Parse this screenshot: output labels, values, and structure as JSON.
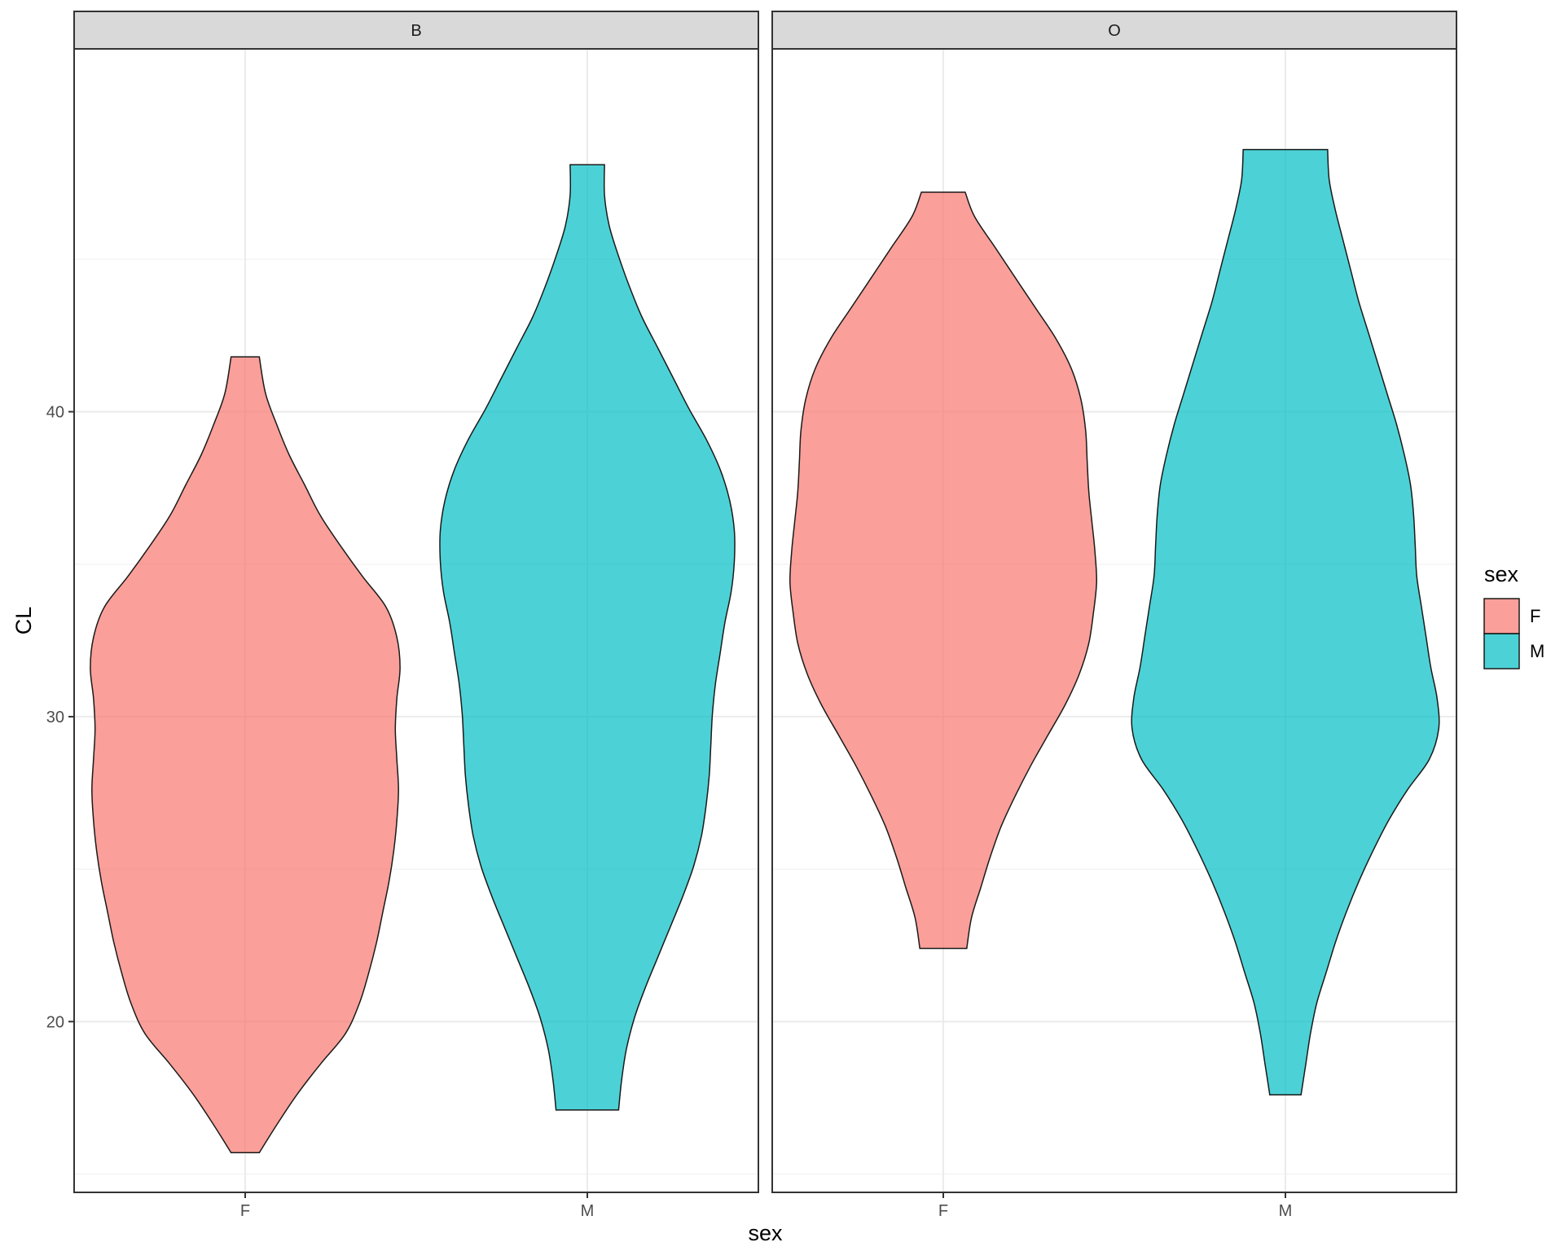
{
  "chart_data": {
    "type": "violin",
    "facets": [
      {
        "label": "B",
        "categories": [
          "F",
          "M"
        ],
        "violins": [
          {
            "category": "F",
            "series": "F",
            "min": 15.7,
            "max": 41.8,
            "profile": [
              [
                15.7,
                0.09
              ],
              [
                16.6,
                0.2
              ],
              [
                17.6,
                0.33
              ],
              [
                18.6,
                0.48
              ],
              [
                19.6,
                0.64
              ],
              [
                20.6,
                0.73
              ],
              [
                21.6,
                0.79
              ],
              [
                22.6,
                0.84
              ],
              [
                23.6,
                0.88
              ],
              [
                24.6,
                0.92
              ],
              [
                25.6,
                0.95
              ],
              [
                26.6,
                0.97
              ],
              [
                27.6,
                0.98
              ],
              [
                28.6,
                0.97
              ],
              [
                29.6,
                0.96
              ],
              [
                30.6,
                0.97
              ],
              [
                31.6,
                0.99
              ],
              [
                32.6,
                0.97
              ],
              [
                33.6,
                0.9
              ],
              [
                34.6,
                0.75
              ],
              [
                35.6,
                0.61
              ],
              [
                36.6,
                0.48
              ],
              [
                37.6,
                0.38
              ],
              [
                38.6,
                0.28
              ],
              [
                39.6,
                0.2
              ],
              [
                40.6,
                0.13
              ],
              [
                41.8,
                0.09
              ]
            ]
          },
          {
            "category": "M",
            "series": "M",
            "min": 17.1,
            "max": 48.1,
            "profile": [
              [
                17.1,
                0.2
              ],
              [
                18.1,
                0.22
              ],
              [
                19.1,
                0.25
              ],
              [
                20.1,
                0.3
              ],
              [
                21.1,
                0.37
              ],
              [
                22.1,
                0.45
              ],
              [
                23.1,
                0.53
              ],
              [
                24.1,
                0.61
              ],
              [
                25.1,
                0.68
              ],
              [
                26.1,
                0.73
              ],
              [
                27.1,
                0.76
              ],
              [
                28.1,
                0.78
              ],
              [
                29.1,
                0.79
              ],
              [
                30.1,
                0.8
              ],
              [
                31.1,
                0.82
              ],
              [
                32.1,
                0.85
              ],
              [
                33.1,
                0.88
              ],
              [
                34.1,
                0.92
              ],
              [
                35.1,
                0.94
              ],
              [
                36.1,
                0.94
              ],
              [
                37.1,
                0.91
              ],
              [
                38.1,
                0.85
              ],
              [
                39.1,
                0.76
              ],
              [
                40.1,
                0.65
              ],
              [
                41.1,
                0.55
              ],
              [
                42.1,
                0.45
              ],
              [
                43.1,
                0.35
              ],
              [
                44.1,
                0.27
              ],
              [
                45.1,
                0.2
              ],
              [
                46.1,
                0.14
              ],
              [
                47.1,
                0.11
              ],
              [
                48.1,
                0.11
              ]
            ]
          }
        ]
      },
      {
        "label": "O",
        "categories": [
          "F",
          "M"
        ],
        "violins": [
          {
            "category": "F",
            "series": "F",
            "min": 22.4,
            "max": 47.2,
            "profile": [
              [
                22.4,
                0.15
              ],
              [
                23.4,
                0.18
              ],
              [
                24.4,
                0.24
              ],
              [
                25.4,
                0.3
              ],
              [
                26.4,
                0.37
              ],
              [
                27.4,
                0.46
              ],
              [
                28.4,
                0.56
              ],
              [
                29.4,
                0.67
              ],
              [
                30.4,
                0.78
              ],
              [
                31.4,
                0.87
              ],
              [
                32.4,
                0.93
              ],
              [
                33.4,
                0.96
              ],
              [
                34.4,
                0.98
              ],
              [
                35.4,
                0.97
              ],
              [
                36.4,
                0.95
              ],
              [
                37.4,
                0.93
              ],
              [
                38.4,
                0.92
              ],
              [
                39.4,
                0.91
              ],
              [
                40.4,
                0.88
              ],
              [
                41.4,
                0.82
              ],
              [
                42.4,
                0.72
              ],
              [
                43.4,
                0.59
              ],
              [
                44.4,
                0.46
              ],
              [
                45.4,
                0.33
              ],
              [
                46.4,
                0.2
              ],
              [
                47.2,
                0.14
              ]
            ]
          },
          {
            "category": "M",
            "series": "M",
            "min": 17.6,
            "max": 48.6,
            "profile": [
              [
                17.6,
                0.1
              ],
              [
                18.6,
                0.13
              ],
              [
                19.6,
                0.16
              ],
              [
                20.6,
                0.2
              ],
              [
                21.6,
                0.26
              ],
              [
                22.6,
                0.32
              ],
              [
                23.6,
                0.39
              ],
              [
                24.6,
                0.47
              ],
              [
                25.6,
                0.56
              ],
              [
                26.6,
                0.66
              ],
              [
                27.6,
                0.78
              ],
              [
                28.6,
                0.92
              ],
              [
                29.6,
                0.98
              ],
              [
                30.6,
                0.97
              ],
              [
                31.6,
                0.93
              ],
              [
                32.6,
                0.9
              ],
              [
                33.6,
                0.87
              ],
              [
                34.6,
                0.84
              ],
              [
                35.6,
                0.83
              ],
              [
                36.6,
                0.82
              ],
              [
                37.6,
                0.8
              ],
              [
                38.6,
                0.76
              ],
              [
                39.6,
                0.71
              ],
              [
                40.6,
                0.65
              ],
              [
                41.6,
                0.59
              ],
              [
                42.6,
                0.53
              ],
              [
                43.6,
                0.47
              ],
              [
                44.6,
                0.42
              ],
              [
                45.6,
                0.37
              ],
              [
                46.6,
                0.32
              ],
              [
                47.6,
                0.28
              ],
              [
                48.6,
                0.27
              ]
            ]
          }
        ]
      }
    ],
    "x_title": "sex",
    "y_title": "CL",
    "y_ticks": [
      20,
      30,
      40
    ],
    "y_range": [
      14.4,
      51.9
    ],
    "grid": true,
    "legend": {
      "title": "sex",
      "placement": "right",
      "items": [
        {
          "label": "F",
          "color": "#F8766D"
        },
        {
          "label": "M",
          "color": "#00BFC4"
        }
      ]
    },
    "series_colors": {
      "F": "#F8766D",
      "M": "#00BFC4"
    },
    "fill_opacity": 0.7
  }
}
